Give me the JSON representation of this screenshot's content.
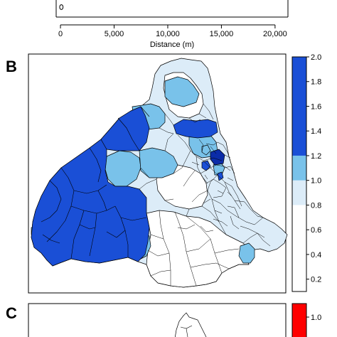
{
  "panels": {
    "a": {
      "xlabel": "Distance (m)",
      "x_ticks": [
        "0",
        "5,000",
        "10,000",
        "15,000",
        "20,000"
      ],
      "x_tick_values": [
        0,
        5000,
        10000,
        15000,
        20000
      ],
      "xlim": [
        -400,
        21200
      ],
      "point": {
        "x": 150
      }
    },
    "b": {
      "letter": "B",
      "colorbar": {
        "range": [
          0.1,
          2.0
        ],
        "tick_values": [
          0.2,
          0.4,
          0.6,
          0.8,
          1.0,
          1.2,
          1.4,
          1.6,
          1.8,
          2.0
        ],
        "tick_labels": [
          "0.2",
          "0.4",
          "0.6",
          "0.8",
          "1.0",
          "1.2",
          "1.4",
          "1.6",
          "1.8",
          "2.0"
        ],
        "bands": [
          {
            "from": 0.1,
            "to": 0.8,
            "color": "#ffffff"
          },
          {
            "from": 0.8,
            "to": 1.0,
            "color": "#dcecf8"
          },
          {
            "from": 1.0,
            "to": 1.2,
            "color": "#79c2ea"
          },
          {
            "from": 1.2,
            "to": 2.0,
            "color": "#1a4fd6"
          }
        ]
      },
      "colors": {
        "dark": "#1a4fd6",
        "mid": "#79c2ea",
        "light": "#dcecf8",
        "white": "#ffffff",
        "darkest": "#0b2ca8"
      }
    },
    "c": {
      "letter": "C",
      "colorbar": {
        "tick_labels": [
          "1.0"
        ],
        "color": "#ff0000"
      }
    }
  },
  "chart_data": [
    {
      "type": "scatter",
      "xlabel": "Distance (m)",
      "x_ticks": [
        0,
        5000,
        10000,
        15000,
        20000
      ],
      "xlim": [
        -400,
        21200
      ],
      "points": [
        {
          "x": 150
        }
      ]
    },
    {
      "type": "heatmap",
      "subtype": "choropleth-map",
      "colorbar_range": [
        0.1,
        2.0
      ],
      "colorbar_ticks": [
        0.2,
        0.4,
        0.6,
        0.8,
        1.0,
        1.2,
        1.4,
        1.6,
        1.8,
        2.0
      ]
    },
    {
      "type": "heatmap",
      "subtype": "choropleth-map",
      "colorbar_ticks": [
        1.0
      ]
    }
  ]
}
